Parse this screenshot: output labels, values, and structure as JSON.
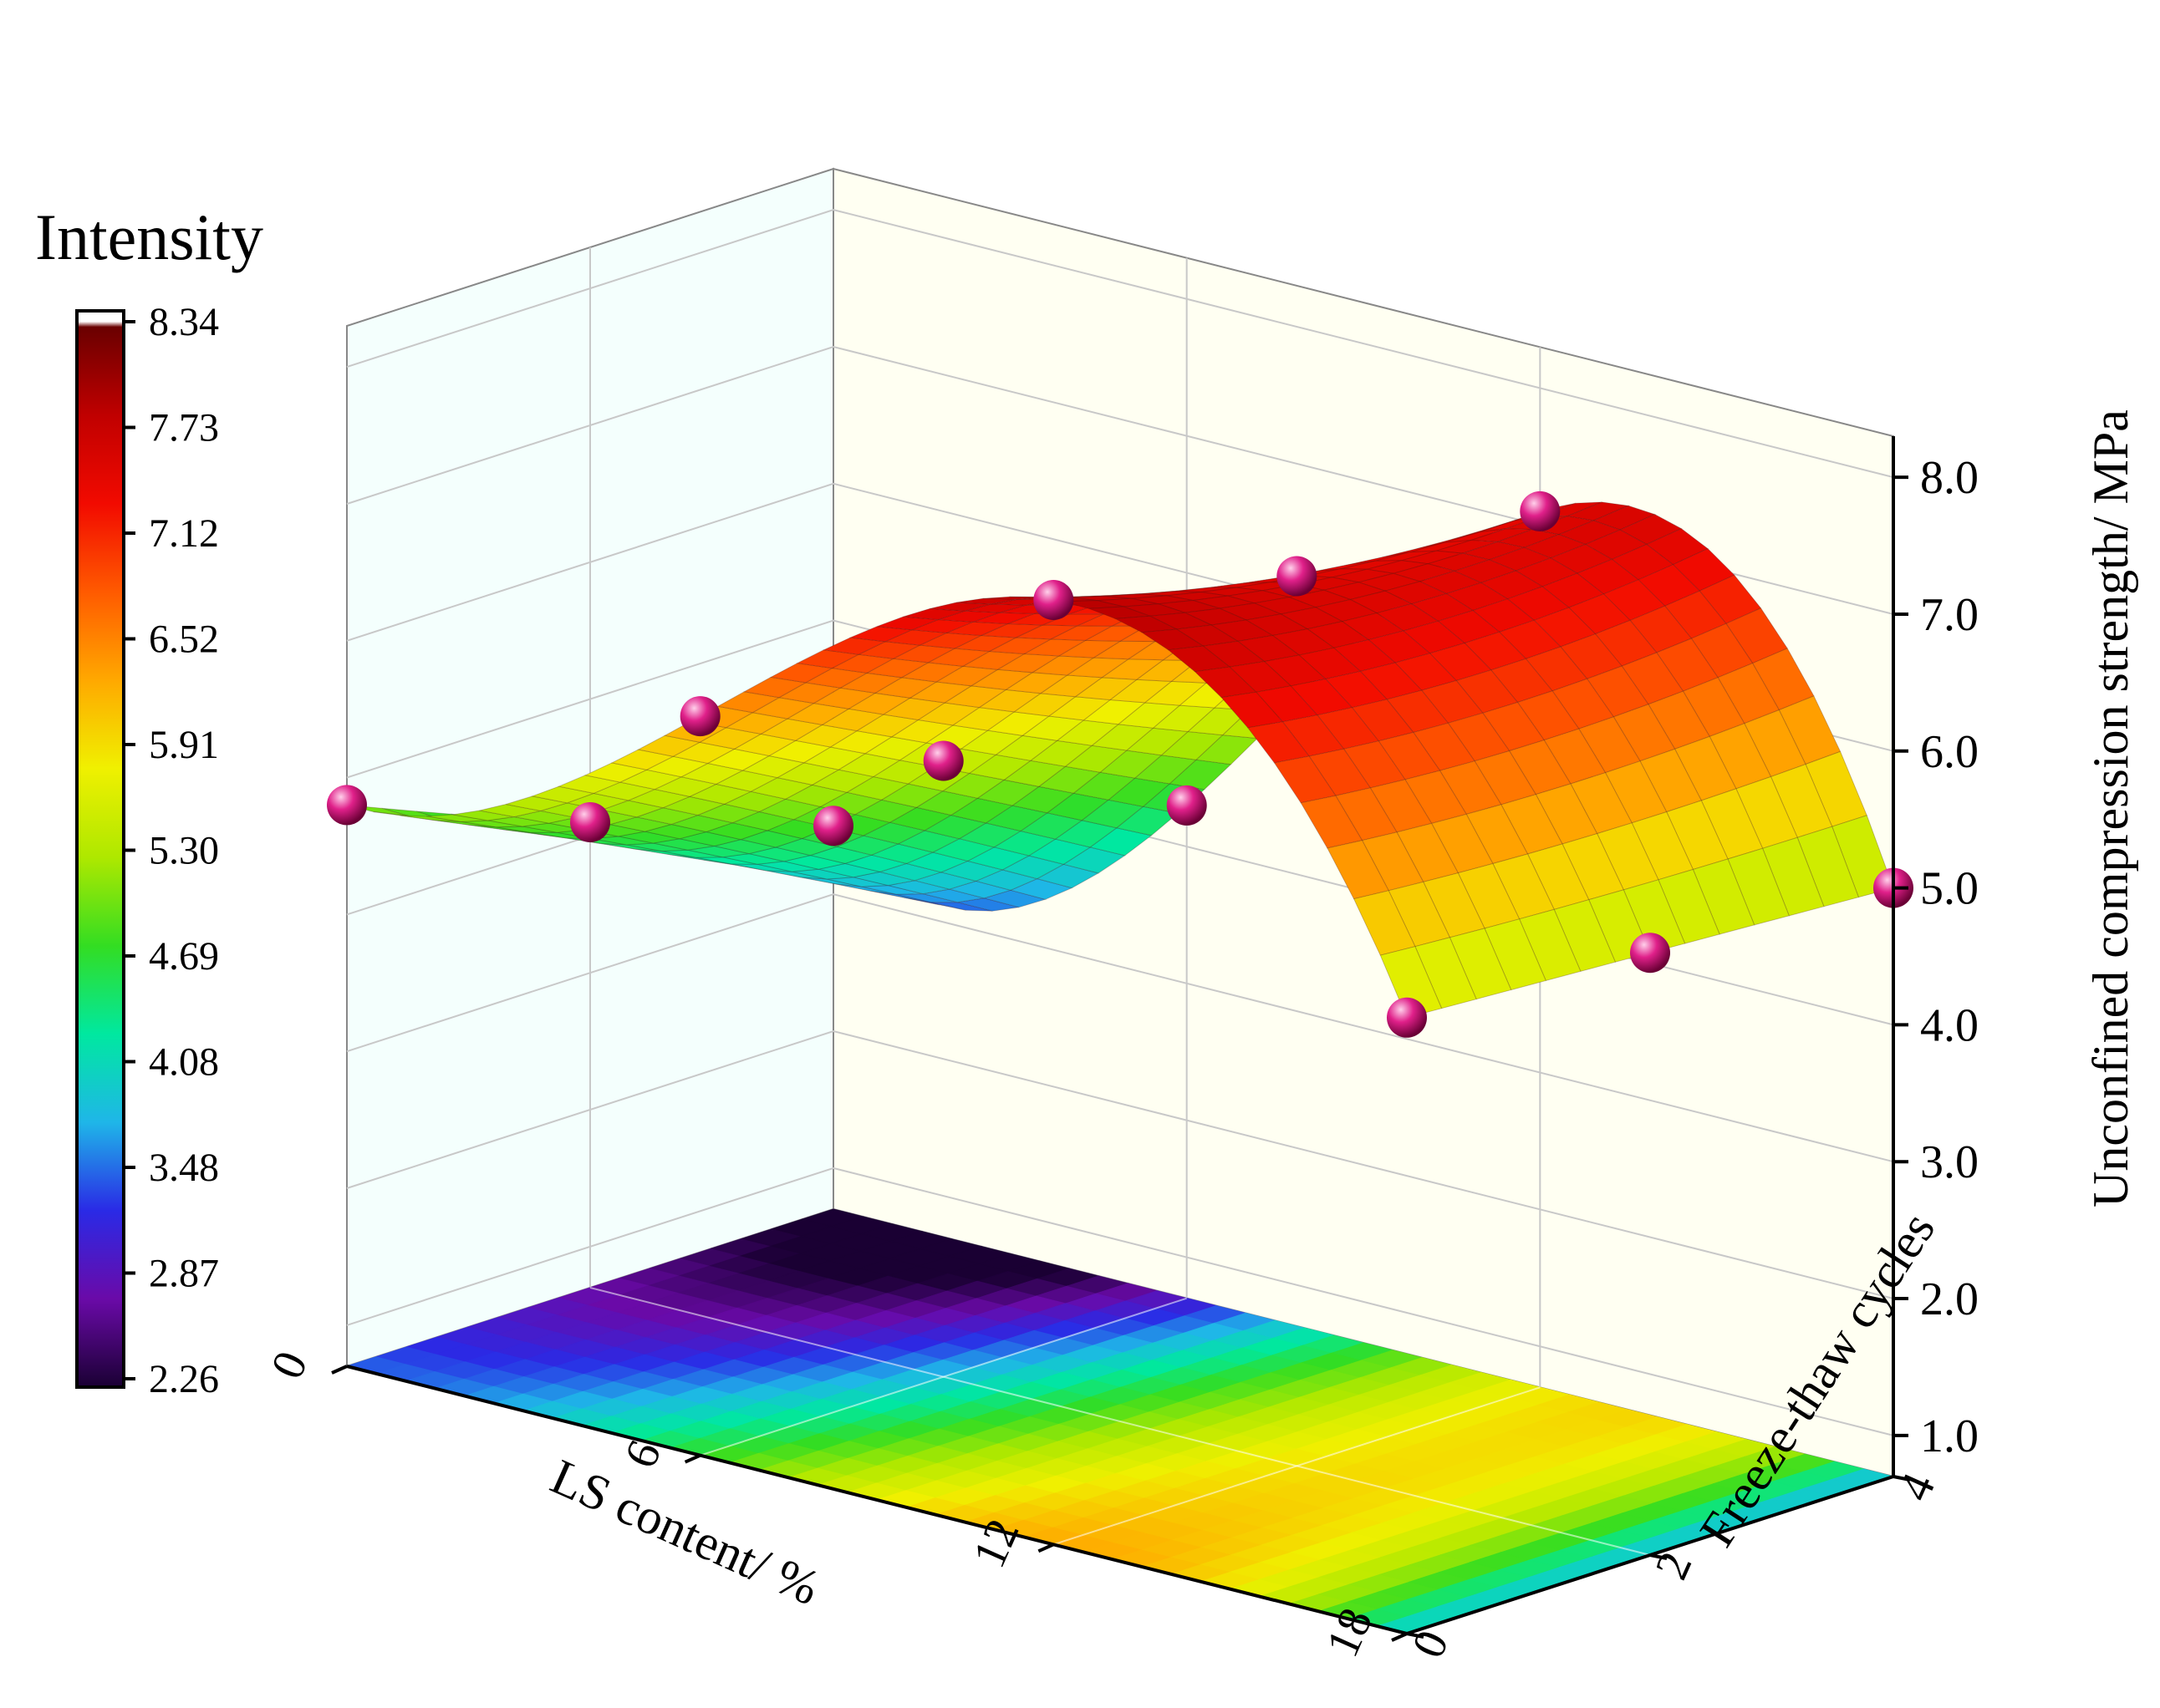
{
  "chart_data": {
    "type": "surface3d",
    "colorbar": {
      "title": "Intensity",
      "ticks": [
        "8.34",
        "7.73",
        "7.12",
        "6.52",
        "5.91",
        "5.30",
        "4.69",
        "4.08",
        "3.48",
        "2.87",
        "2.26"
      ],
      "min": 2.26,
      "max": 8.34,
      "colors": [
        "#1a0033",
        "#6a0aa8",
        "#2a2ae6",
        "#1fb6e8",
        "#00e8a0",
        "#33dd22",
        "#aee800",
        "#f0f000",
        "#ffa800",
        "#ff5a00",
        "#f20a00",
        "#c00000",
        "#6a0000",
        "#ffffff"
      ]
    },
    "x_axis": {
      "label": "LS content/ %",
      "ticks": [
        "0",
        "6",
        "12",
        "18"
      ],
      "range": [
        0,
        18
      ]
    },
    "y_axis": {
      "label": "Freeze-thaw cycles",
      "ticks": [
        "0",
        "2",
        "4"
      ],
      "range": [
        0,
        4
      ]
    },
    "z_axis": {
      "label": "Unconfined compression strength/ MPa",
      "ticks": [
        "1.0",
        "2.0",
        "3.0",
        "4.0",
        "5.0",
        "6.0",
        "7.0",
        "8.0"
      ],
      "range": [
        0.7,
        8.3
      ]
    },
    "points": [
      {
        "x": 0,
        "y": 0,
        "z": 4.8
      },
      {
        "x": 0,
        "y": 2,
        "z": 4.1
      },
      {
        "x": 0,
        "y": 4,
        "z": 3.5
      },
      {
        "x": 6,
        "y": 0,
        "z": 6.1
      },
      {
        "x": 6,
        "y": 2,
        "z": 5.2
      },
      {
        "x": 6,
        "y": 4,
        "z": 4.3
      },
      {
        "x": 12,
        "y": 0,
        "z": 7.6
      },
      {
        "x": 12,
        "y": 2,
        "z": 7.2
      },
      {
        "x": 12,
        "y": 4,
        "z": 7.1
      },
      {
        "x": 18,
        "y": 0,
        "z": 5.2
      },
      {
        "x": 18,
        "y": 2,
        "z": 5.1
      },
      {
        "x": 18,
        "y": 4,
        "z": 5.0
      }
    ]
  }
}
